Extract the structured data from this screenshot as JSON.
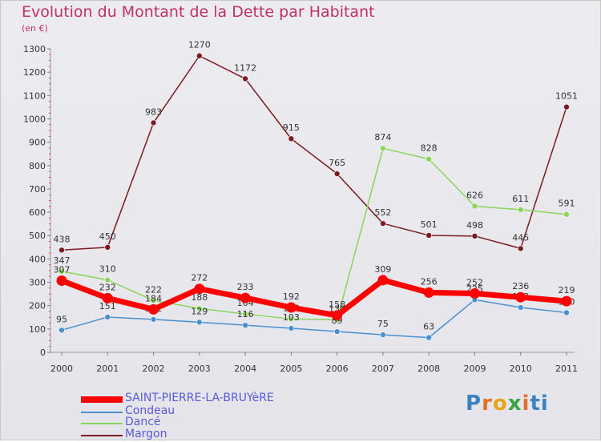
{
  "title": "Evolution du Montant de la Dette par Habitant",
  "unit": "(en €)",
  "logo": [
    "P",
    "r",
    "o",
    "x",
    "i",
    "ti"
  ],
  "chart_data": {
    "type": "line",
    "x": [
      "2000",
      "2001",
      "2002",
      "2003",
      "2004",
      "2005",
      "2006",
      "2007",
      "2008",
      "2009",
      "2010",
      "2011"
    ],
    "ylim": [
      0,
      1300
    ],
    "yticks": [
      0,
      100,
      200,
      300,
      400,
      500,
      600,
      700,
      800,
      900,
      1000,
      1100,
      1200,
      1300
    ],
    "grid": false,
    "legend_position": "bottom-left",
    "series": [
      {
        "name": "Margon",
        "color": "#7a1a22",
        "values": [
          438,
          450,
          983,
          1270,
          1172,
          915,
          765,
          552,
          501,
          498,
          445,
          1051
        ]
      },
      {
        "name": "Dancé",
        "color": "#8ad45a",
        "values": [
          347,
          310,
          222,
          188,
          164,
          143,
          139,
          874,
          828,
          626,
          611,
          591
        ]
      },
      {
        "name": "Condeau",
        "color": "#4a90d0",
        "values": [
          95,
          151,
          141,
          129,
          116,
          103,
          89,
          75,
          63,
          225,
          192,
          170
        ]
      },
      {
        "name": "SAINT-PIERRE-LA-BRUYèRE",
        "color": "#ff0000",
        "values": [
          307,
          232,
          184,
          272,
          233,
          192,
          158,
          309,
          256,
          252,
          236,
          219
        ]
      }
    ],
    "legend": [
      {
        "name": "SAINT-PIERRE-LA-BRUYèRE",
        "color": "#ff0000"
      },
      {
        "name": "Condeau",
        "color": "#4a90d0"
      },
      {
        "name": "Dancé",
        "color": "#8ad45a"
      },
      {
        "name": "Margon",
        "color": "#7a1a22"
      }
    ]
  }
}
